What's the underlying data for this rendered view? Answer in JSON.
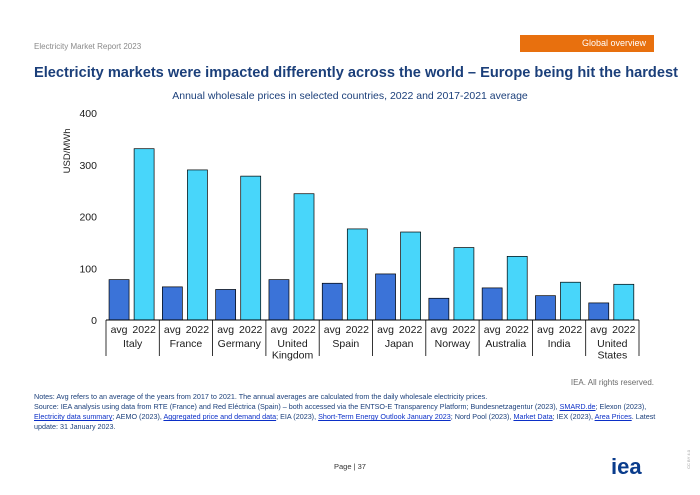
{
  "header": {
    "report": "Electricity Market Report 2023",
    "section": "Global overview"
  },
  "title": "Electricity markets were impacted differently across the world – Europe being hit the hardest",
  "colors": {
    "avg": "#3b73d8",
    "y2022": "#48d6fa",
    "accent": "#e8700e",
    "title": "#1b3f7a"
  },
  "chart_data": {
    "type": "bar",
    "title": "Annual wholesale prices in selected countries, 2022 and 2017-2021 average",
    "ylabel": "USD/MWh",
    "ylim": [
      0,
      400
    ],
    "yticks": [
      0,
      100,
      200,
      300,
      400
    ],
    "series_labels": [
      "avg",
      "2022"
    ],
    "categories": [
      {
        "name": [
          "Italy"
        ],
        "avg": 78,
        "y2022": 331
      },
      {
        "name": [
          "France"
        ],
        "avg": 64,
        "y2022": 290
      },
      {
        "name": [
          "Germany"
        ],
        "avg": 59,
        "y2022": 278
      },
      {
        "name": [
          "United",
          "Kingdom"
        ],
        "avg": 78,
        "y2022": 244
      },
      {
        "name": [
          "Spain"
        ],
        "avg": 71,
        "y2022": 176
      },
      {
        "name": [
          "Japan"
        ],
        "avg": 89,
        "y2022": 170
      },
      {
        "name": [
          "Norway"
        ],
        "avg": 42,
        "y2022": 140
      },
      {
        "name": [
          "Australia"
        ],
        "avg": 62,
        "y2022": 123
      },
      {
        "name": [
          "India"
        ],
        "avg": 47,
        "y2022": 73
      },
      {
        "name": [
          "United",
          "States"
        ],
        "avg": 33,
        "y2022": 69
      }
    ]
  },
  "rights": "IEA. All rights reserved.",
  "notes": {
    "note": "Notes: Avg refers to an average of the years from 2017 to 2021. The annual averages are calculated from the daily wholesale electricity prices.",
    "source_1": "Source: IEA analysis using data from RTE (France) and Red Eléctrica (Spain) – both accessed via the ENTSO-E Transparency Platform; Bundesnetzagentur (2023), ",
    "link_1": "SMARD.de",
    "source_2": "; Elexon (2023), ",
    "link_2": "Electricity data summary",
    "source_3": "; AEMO (2023), ",
    "link_3": "Aggregated price and demand data",
    "source_4": "; EIA (2023), ",
    "link_4": "Short-Term Energy Outlook January 2023",
    "source_5": "; Nord Pool (2023), ",
    "link_5": "Market Data",
    "source_6": "; IEX (2023), ",
    "link_6": "Area Prices",
    "source_7": ". Latest update: 31 January 2023."
  },
  "footer": {
    "page": "Page | 37",
    "logo": "iea",
    "license": "CC BY 4.0"
  }
}
